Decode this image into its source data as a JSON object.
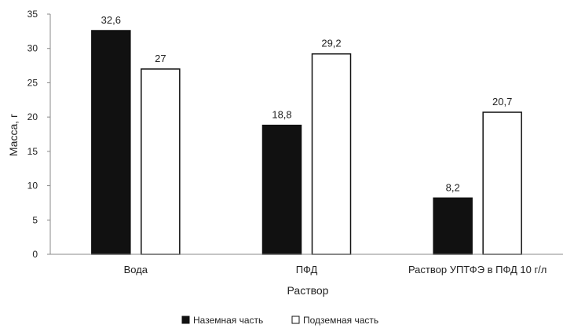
{
  "chart_data": {
    "type": "bar",
    "categories": [
      "Вода",
      "ПФД",
      "Раствор УПТФЭ в ПФД 10 г/л"
    ],
    "series": [
      {
        "name": "Наземная часть",
        "values": [
          32.6,
          18.8,
          8.2
        ],
        "labels": [
          "32,6",
          "18,8",
          "8,2"
        ],
        "fill": "#111111"
      },
      {
        "name": "Подземная часть",
        "values": [
          27,
          29.2,
          20.7
        ],
        "labels": [
          "27",
          "29,2",
          "20,7"
        ],
        "fill": "#ffffff"
      }
    ],
    "title": "",
    "xlabel": "Раствор",
    "ylabel": "Масса, г",
    "ylim": [
      0,
      35
    ],
    "yticks": [
      0,
      5,
      10,
      15,
      20,
      25,
      30,
      35
    ],
    "grid": false,
    "legend_position": "bottom"
  }
}
